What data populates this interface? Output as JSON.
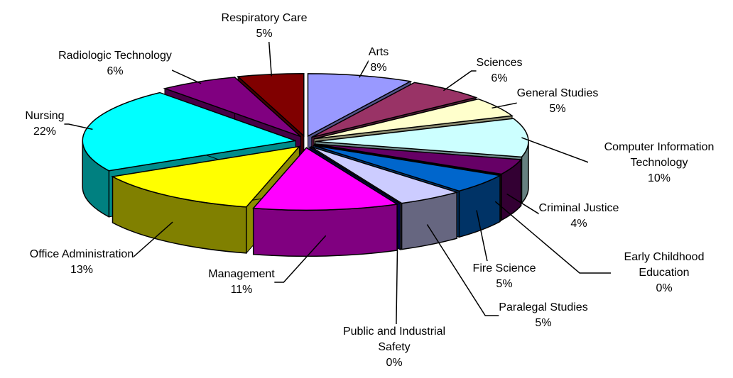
{
  "chart_data": {
    "type": "pie",
    "categories": [
      "Arts",
      "Sciences",
      "General Studies",
      "Computer Information Technology",
      "Criminal Justice",
      "Early Childhood Education",
      "Fire Science",
      "Paralegal Studies",
      "Public and Industrial Safety",
      "Management",
      "Office Administration",
      "Nursing",
      "Radiologic Technology",
      "Respiratory Care"
    ],
    "values": [
      8,
      6,
      5,
      10,
      4,
      0,
      5,
      5,
      0,
      11,
      13,
      22,
      6,
      5
    ],
    "value_labels": [
      "8%",
      "6%",
      "5%",
      "10%",
      "4%",
      "0%",
      "5%",
      "5%",
      "0%",
      "11%",
      "13%",
      "22%",
      "6%",
      "5%"
    ],
    "colors": [
      "#9999ff",
      "#993366",
      "#ffffcc",
      "#ccffff",
      "#660066",
      "#ff8080",
      "#0066cc",
      "#ccccff",
      "#000080",
      "#ff00ff",
      "#ffff00",
      "#00ffff",
      "#800080",
      "#800000"
    ]
  }
}
